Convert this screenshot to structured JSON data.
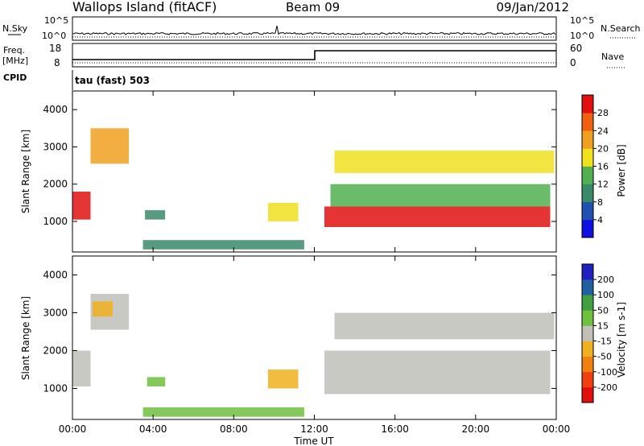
{
  "header": {
    "station": "Wallops Island (fitACF)",
    "beam": "Beam 09",
    "date": "09/Jan/2012"
  },
  "noise_panel": {
    "left_label": "N.Sky",
    "right_label": "N.Search",
    "ticks": [
      "10^5",
      "10^0"
    ]
  },
  "freq_panel": {
    "left_label_line1": "Freq.",
    "left_label_line2": "[MHz]",
    "left_ticks": [
      "18",
      "8"
    ],
    "right_label": "Nave",
    "right_ticks": [
      "60",
      "0"
    ]
  },
  "cpid": {
    "label": "CPID",
    "value": "tau (fast) 503"
  },
  "colors": {
    "power_scale": [
      "#1010e0",
      "#2050b0",
      "#3a8a6a",
      "#50b050",
      "#f0e020",
      "#f0a020",
      "#f06010",
      "#e01010"
    ],
    "velocity_scale": [
      "#e01010",
      "#f04010",
      "#f08010",
      "#f0b020",
      "#c0c0b8",
      "#70c040",
      "#40a040",
      "#2060a0",
      "#2020c0"
    ],
    "gray": "#c0c0b8"
  },
  "chart_data": [
    {
      "type": "heatmap",
      "title": "Power",
      "ylabel": "Slant Range [km]",
      "xlabel": "",
      "x_ticks": [
        "00:00",
        "04:00",
        "08:00",
        "12:00",
        "16:00",
        "20:00",
        "00:00"
      ],
      "y_ticks": [
        "1000",
        "2000",
        "3000",
        "4000"
      ],
      "xlim_hours": [
        0,
        24
      ],
      "ylim_km": [
        180,
        4500
      ],
      "colorbar_label": "Power [dB]",
      "colorbar_ticks": [
        "28",
        "24",
        "20",
        "16",
        "12",
        "8",
        "4"
      ],
      "colorbar_range": [
        0,
        32
      ],
      "regions": [
        {
          "t0": 0.0,
          "t1": 0.9,
          "r0": 1050,
          "r1": 1800,
          "value": 28
        },
        {
          "t0": 0.9,
          "t1": 2.8,
          "r0": 2550,
          "r1": 3500,
          "value": 20
        },
        {
          "t0": 3.6,
          "t1": 4.6,
          "r0": 1050,
          "r1": 1300,
          "value": 10
        },
        {
          "t0": 3.5,
          "t1": 11.5,
          "r0": 250,
          "r1": 500,
          "value": 10
        },
        {
          "t0": 9.7,
          "t1": 11.2,
          "r0": 1000,
          "r1": 1500,
          "value": 18
        },
        {
          "t0": 12.5,
          "t1": 23.7,
          "r0": 850,
          "r1": 1400,
          "value": 30
        },
        {
          "t0": 12.8,
          "t1": 23.7,
          "r0": 1400,
          "r1": 2000,
          "value": 14
        },
        {
          "t0": 13.0,
          "t1": 23.9,
          "r0": 2300,
          "r1": 2900,
          "value": 16
        }
      ]
    },
    {
      "type": "heatmap",
      "title": "Velocity",
      "ylabel": "Slant Range [km]",
      "xlabel": "Time UT",
      "x_ticks": [
        "00:00",
        "04:00",
        "08:00",
        "12:00",
        "16:00",
        "20:00",
        "00:00"
      ],
      "y_ticks": [
        "1000",
        "2000",
        "3000",
        "4000"
      ],
      "xlim_hours": [
        0,
        24
      ],
      "ylim_km": [
        180,
        4500
      ],
      "colorbar_label": "Velocity [m s-1]",
      "colorbar_ticks": [
        "200",
        "100",
        "50",
        "15",
        "-15",
        "-50",
        "-100",
        "-200"
      ],
      "colorbar_range": [
        -250,
        250
      ],
      "regions": [
        {
          "t0": 0.0,
          "t1": 0.9,
          "r0": 1050,
          "r1": 2000,
          "value": 0
        },
        {
          "t0": 0.9,
          "t1": 2.8,
          "r0": 2550,
          "r1": 3500,
          "value": 0
        },
        {
          "t0": 1.0,
          "t1": 2.0,
          "r0": 2900,
          "r1": 3300,
          "value": -60
        },
        {
          "t0": 3.7,
          "t1": 4.6,
          "r0": 1050,
          "r1": 1300,
          "value": 70
        },
        {
          "t0": 3.5,
          "t1": 11.5,
          "r0": 250,
          "r1": 500,
          "value": 40
        },
        {
          "t0": 9.7,
          "t1": 11.2,
          "r0": 1000,
          "r1": 1500,
          "value": -80
        },
        {
          "t0": 12.5,
          "t1": 23.7,
          "r0": 850,
          "r1": 2000,
          "value": 0
        },
        {
          "t0": 13.0,
          "t1": 23.9,
          "r0": 2300,
          "r1": 3000,
          "value": 0
        }
      ]
    }
  ]
}
